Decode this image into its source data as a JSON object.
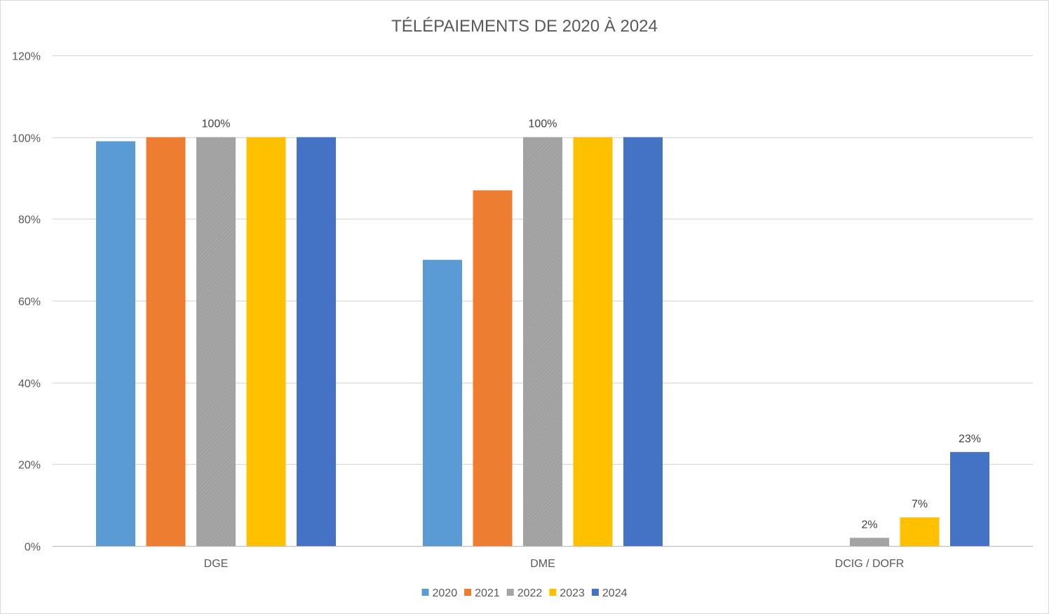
{
  "chart_data": {
    "type": "bar",
    "title": "TÉLÉPAIEMENTS DE 2020 À 2024",
    "xlabel": "",
    "ylabel": "",
    "ylim": [
      0,
      1.2
    ],
    "y_ticks": [
      0,
      0.2,
      0.4,
      0.6,
      0.8,
      1.0,
      1.2
    ],
    "y_tick_labels": [
      "0%",
      "20%",
      "40%",
      "60%",
      "80%",
      "100%",
      "120%"
    ],
    "y_format": "percent",
    "grid": true,
    "legend_position": "bottom",
    "categories": [
      "DGE",
      "DME",
      "DCIG / DOFR"
    ],
    "series": [
      {
        "name": "2020",
        "color": "#5b9bd5",
        "values": [
          0.99,
          0.7,
          0
        ]
      },
      {
        "name": "2021",
        "color": "#ed7d31",
        "values": [
          1.0,
          0.87,
          0
        ]
      },
      {
        "name": "2022",
        "color": "#a5a5a5",
        "values": [
          1.0,
          1.0,
          0.02
        ]
      },
      {
        "name": "2023",
        "color": "#ffc000",
        "values": [
          1.0,
          1.0,
          0.07
        ]
      },
      {
        "name": "2024",
        "color": "#4472c4",
        "values": [
          1.0,
          1.0,
          0.23
        ]
      }
    ],
    "data_labels": [
      {
        "series": 2,
        "category": 0,
        "text": "100%"
      },
      {
        "series": 2,
        "category": 1,
        "text": "100%"
      },
      {
        "series": 2,
        "category": 2,
        "text": "2%"
      },
      {
        "series": 3,
        "category": 2,
        "text": "7%"
      },
      {
        "series": 4,
        "category": 2,
        "text": "23%"
      }
    ]
  }
}
